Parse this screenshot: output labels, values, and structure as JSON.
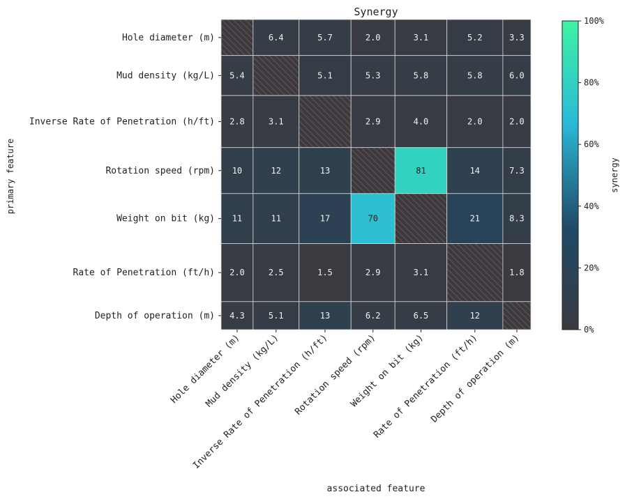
{
  "chart_data": {
    "type": "heatmap",
    "title": "Synergy",
    "xlabel": "associated feature",
    "ylabel": "primary feature",
    "x_categories": [
      "Hole diameter (m)",
      "Mud density (kg/L)",
      "Inverse Rate of Penetration (h/ft)",
      "Rotation speed (rpm)",
      "Weight on bit (kg)",
      "Rate of Penetration (ft/h)",
      "Depth of operation (m)"
    ],
    "y_categories": [
      "Hole diameter (m)",
      "Mud density (kg/L)",
      "Inverse Rate of Penetration (h/ft)",
      "Rotation speed (rpm)",
      "Weight on bit (kg)",
      "Rate of Penetration (ft/h)",
      "Depth of operation (m)"
    ],
    "values": [
      [
        null,
        6.4,
        5.7,
        2.0,
        3.1,
        5.2,
        3.3
      ],
      [
        5.4,
        null,
        5.1,
        5.3,
        5.8,
        5.8,
        6.0
      ],
      [
        2.8,
        3.1,
        null,
        2.9,
        4.0,
        2.0,
        2.0
      ],
      [
        10,
        12,
        13,
        null,
        81,
        14,
        7.3
      ],
      [
        11,
        11,
        17,
        70,
        null,
        21,
        8.3
      ],
      [
        2.0,
        2.5,
        1.5,
        2.9,
        3.1,
        null,
        1.8
      ],
      [
        4.3,
        5.1,
        13,
        6.2,
        6.5,
        12,
        null
      ]
    ],
    "cell_labels": [
      [
        "",
        "6.4",
        "5.7",
        "2.0",
        "3.1",
        "5.2",
        "3.3"
      ],
      [
        "5.4",
        "",
        "5.1",
        "5.3",
        "5.8",
        "5.8",
        "6.0"
      ],
      [
        "2.8",
        "3.1",
        "",
        "2.9",
        "4.0",
        "2.0",
        "2.0"
      ],
      [
        "10",
        "12",
        "13",
        "",
        "81",
        "14",
        "7.3"
      ],
      [
        "11",
        "11",
        "17",
        "70",
        "",
        "21",
        "8.3"
      ],
      [
        "2.0",
        "2.5",
        "1.5",
        "2.9",
        "3.1",
        "",
        "1.8"
      ],
      [
        "4.3",
        "5.1",
        "13",
        "6.2",
        "6.5",
        "12",
        ""
      ]
    ],
    "column_weights": [
      0.8,
      1.15,
      1.3,
      1.1,
      1.3,
      1.4,
      0.7
    ],
    "row_weights": [
      0.9,
      1.0,
      1.3,
      1.15,
      1.25,
      1.45,
      0.7
    ],
    "colorbar": {
      "label": "synergy",
      "ticks": [
        "0%",
        "20%",
        "40%",
        "60%",
        "80%",
        "100%"
      ],
      "range": [
        0,
        100
      ],
      "colors": [
        "#3a3a3f",
        "#1f4a68",
        "#2ab9d6",
        "#3ef3a3"
      ]
    },
    "diagonal": "hatched",
    "colors": {
      "low": "#3a3a3f",
      "mid": "#1f4a68",
      "high": "#2ab9d6",
      "top": "#3ef3a3",
      "hatch_bg": "#3a3a3f",
      "hatch_line": "#6b5357"
    }
  }
}
